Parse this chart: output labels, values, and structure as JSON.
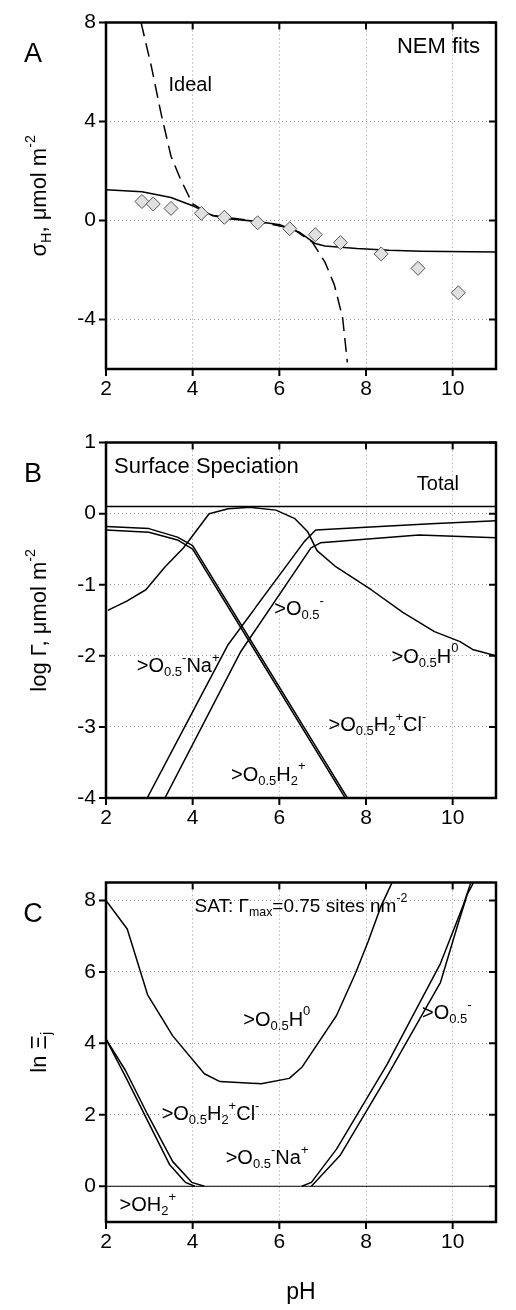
{
  "chart_data": [
    {
      "type": "line",
      "title": "A",
      "ylabel": "σ$_{H}$, μmol m$^{-2}$",
      "xlim": [
        2,
        11
      ],
      "xticks": [
        2,
        4,
        6,
        8,
        10
      ],
      "ylim": [
        -6,
        8
      ],
      "yticks": [
        -4,
        0,
        4,
        8
      ],
      "grid": true,
      "annotations": [
        "NEM fits"
      ],
      "series": [
        {
          "type": "scatter",
          "color": "#e0e0e0",
          "marker": "diamond",
          "x": [
            2.83,
            3.09,
            3.5,
            4.2,
            4.73,
            5.5,
            6.24,
            6.83,
            7.41,
            8.35,
            9.2,
            10.13
          ],
          "values": [
            0.77,
            0.67,
            0.49,
            0.29,
            0.13,
            -0.09,
            -0.33,
            -0.57,
            -0.89,
            -1.35,
            -1.93,
            -2.92
          ]
        },
        {
          "type": "line",
          "color": "#000000",
          "line_style": "solid",
          "x": [
            2,
            2.83,
            3.5,
            4,
            4.46,
            4.83,
            5.5,
            6.01,
            6.46,
            6.83,
            7.05,
            7.79,
            8.53,
            9.27,
            11
          ],
          "values": [
            1.24,
            1.16,
            0.93,
            0.6,
            0.2,
            0.07,
            -0.04,
            -0.17,
            -0.47,
            -0.93,
            -1.03,
            -1.13,
            -1.2,
            -1.24,
            -1.27
          ]
        },
        {
          "type": "line",
          "name": "Ideal",
          "color": "#000000",
          "line_style": "dashed",
          "x": [
            2.81,
            3.05,
            3.27,
            3.5,
            3.72,
            4,
            4.46,
            5.5,
            6.31,
            6.76,
            7.05,
            7.27,
            7.46,
            7.57
          ],
          "values": [
            8,
            6.2,
            4.33,
            2.6,
            1.67,
            0.67,
            0.2,
            -0.04,
            -0.33,
            -0.87,
            -1.67,
            -2.6,
            -3.93,
            -5.73
          ]
        }
      ]
    },
    {
      "type": "line",
      "title": "B",
      "ylabel": "log Γ, μmol m$^{-2}$",
      "xlim": [
        2,
        11
      ],
      "xticks": [
        2,
        4,
        6,
        8,
        10
      ],
      "ylim": [
        -4,
        1
      ],
      "yticks": [
        -4,
        -3,
        -2,
        -1,
        0,
        1
      ],
      "grid": true,
      "annotations": [
        "Surface Speciation"
      ],
      "series": [
        {
          "type": "line",
          "name": "Total",
          "color": "#000000",
          "x": [
            2,
            11
          ],
          "values": [
            0.1,
            0.1
          ]
        },
        {
          "type": "line",
          "name": ">O$_{0.5}$H$^{0}$",
          "color": "#000000",
          "x": [
            2.04,
            2.48,
            2.92,
            3.36,
            3.79,
            4.38,
            4.82,
            5.33,
            5.92,
            6.36,
            6.65,
            6.87,
            7.31,
            8.12,
            8.85,
            9.58,
            10.17,
            10.46,
            11
          ],
          "values": [
            -1.36,
            -1.23,
            -1.07,
            -0.75,
            -0.48,
            0,
            0.07,
            0.09,
            0.05,
            -0.07,
            -0.25,
            -0.52,
            -0.75,
            -1.07,
            -1.39,
            -1.66,
            -1.8,
            -1.91,
            -2.0
          ]
        },
        {
          "type": "line",
          "name": ">O$_{0.5}$$^{-}$",
          "color": "#000000",
          "x": [
            2.95,
            4.82,
            6.58,
            6.84,
            8,
            9.5,
            11
          ],
          "values": [
            -4,
            -1.84,
            -0.39,
            -0.23,
            -0.19,
            -0.14,
            -0.1
          ]
        },
        {
          "type": "line",
          "name": ">O$_{0.5}$$^{-}$Na$^{+}$",
          "color": "#000000",
          "x": [
            3.36,
            5.1,
            6.73,
            6.95,
            9.22,
            11
          ],
          "values": [
            -4,
            -1.95,
            -0.48,
            -0.41,
            -0.3,
            -0.34
          ]
        },
        {
          "type": "line",
          "name": ">O$_{0.5}$H$_{2}$$^{+}$Cl$^{-}$",
          "color": "#000000",
          "x": [
            2,
            2.99,
            3.65,
            4,
            7.57
          ],
          "values": [
            -0.18,
            -0.21,
            -0.33,
            -0.45,
            -4
          ]
        },
        {
          "type": "line",
          "name": ">O$_{0.5}$H$_{2}$$^{+}$",
          "color": "#000000",
          "x": [
            2,
            2.99,
            3.65,
            4,
            7.52
          ],
          "values": [
            -0.23,
            -0.26,
            -0.37,
            -0.5,
            -4
          ]
        }
      ]
    },
    {
      "type": "line",
      "title": "C",
      "xlabel": "pH",
      "ylabel": "ln Ξ$_{j}$",
      "xlim": [
        2,
        11
      ],
      "xticks": [
        2,
        4,
        6,
        8,
        10
      ],
      "ylim": [
        -1,
        8.5
      ],
      "yticks": [
        0,
        2,
        4,
        6,
        8
      ],
      "grid": true,
      "annotations": [
        "SAT: Γ$_{max}$=0.75 sites nm$^{-2}$"
      ],
      "ref_lines": [
        {
          "axis": "y",
          "value": 0,
          "color": "#000000"
        }
      ],
      "series": [
        {
          "type": "line",
          "name": ">O$_{0.5}$H$^{0}$",
          "color": "#000000",
          "x": [
            2,
            2.49,
            2.96,
            3.54,
            4.27,
            4.63,
            5.58,
            6.23,
            6.52,
            7.32,
            7.76,
            8.05,
            8.34,
            8.6
          ],
          "values": [
            8,
            7.2,
            5.36,
            4.21,
            3.15,
            2.93,
            2.87,
            3.02,
            3.33,
            4.78,
            5.97,
            6.85,
            7.82,
            8.5
          ]
        },
        {
          "type": "line",
          "name": ">O$_{0.5}$$^{-}$",
          "color": "#000000",
          "x": [
            6.52,
            6.74,
            7.32,
            8.49,
            9.72,
            10.23,
            10.42
          ],
          "values": [
            0,
            0.11,
            1.04,
            3.42,
            6.24,
            7.82,
            8.5
          ]
        },
        {
          "type": "line",
          "name": ">O$_{0.5}$$^{-}$Na$^{+}$",
          "color": "#000000",
          "x": [
            6.74,
            7.4,
            8.49,
            9.72,
            10.09,
            10.34,
            10.48
          ],
          "values": [
            0,
            0.86,
            3.08,
            5.71,
            7.21,
            8.18,
            8.5
          ]
        },
        {
          "type": "line",
          "name": ">O$_{0.5}$H$_{2}$$^{+}$Cl$^{-}$",
          "color": "#000000",
          "x": [
            2,
            2.45,
            2.96,
            3.54,
            3.98,
            4.27
          ],
          "values": [
            4.12,
            3.24,
            2.01,
            0.69,
            0.11,
            0
          ]
        },
        {
          "type": "line",
          "name": ">OH$_{2}$$^{+}$",
          "color": "#000000",
          "x": [
            2,
            2.45,
            3.47,
            3.83,
            4.05
          ],
          "values": [
            4.12,
            3.07,
            0.6,
            0.11,
            0
          ]
        }
      ]
    }
  ]
}
